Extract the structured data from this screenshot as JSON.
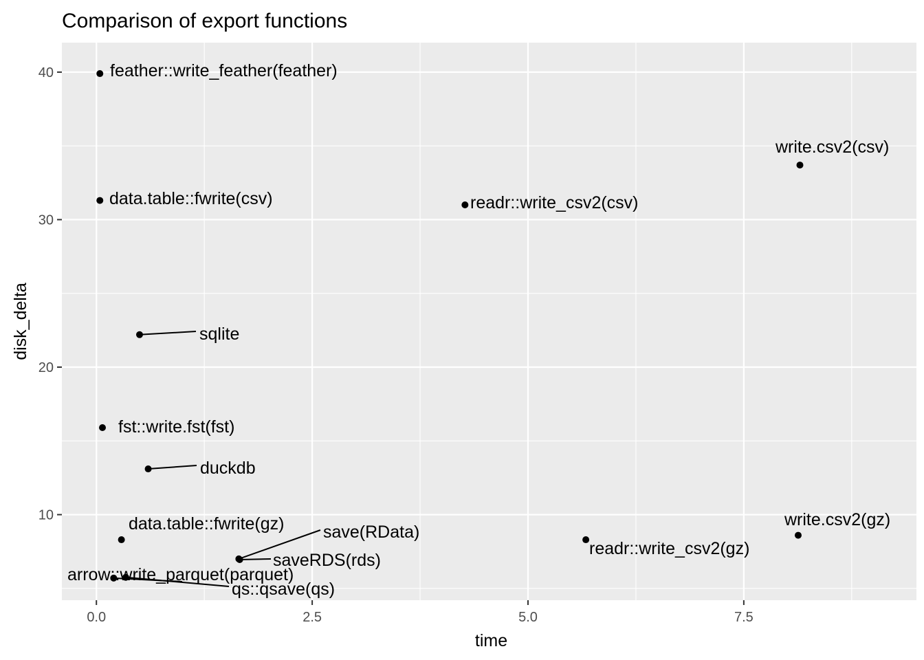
{
  "chart_data": {
    "type": "scatter",
    "title": "Comparison of export functions",
    "xlabel": "time",
    "ylabel": "disk_delta",
    "xlim": [
      -0.4,
      9.5
    ],
    "ylim": [
      4.2,
      42
    ],
    "xticks": [
      0.0,
      2.5,
      5.0,
      7.5
    ],
    "xtick_labels": [
      "0.0",
      "2.5",
      "5.0",
      "7.5"
    ],
    "yticks": [
      10,
      20,
      30,
      40
    ],
    "ytick_labels": [
      "10",
      "20",
      "30",
      "40"
    ],
    "grid": true,
    "points": [
      {
        "label": "feather::write_feather(feather)",
        "x": 0.04,
        "y": 39.9
      },
      {
        "label": "write.csv2(csv)",
        "x": 8.15,
        "y": 33.7
      },
      {
        "label": "data.table::fwrite(csv)",
        "x": 0.04,
        "y": 31.3
      },
      {
        "label": "readr::write_csv2(csv)",
        "x": 4.27,
        "y": 31.0
      },
      {
        "label": "sqlite",
        "x": 0.5,
        "y": 22.2
      },
      {
        "label": "fst::write.fst(fst)",
        "x": 0.07,
        "y": 15.9
      },
      {
        "label": "duckdb",
        "x": 0.6,
        "y": 13.1
      },
      {
        "label": "data.table::fwrite(gz)",
        "x": 0.29,
        "y": 8.3
      },
      {
        "label": "readr::write_csv2(gz)",
        "x": 5.67,
        "y": 8.3
      },
      {
        "label": "write.csv2(gz)",
        "x": 8.13,
        "y": 8.6
      },
      {
        "label": "save(RData)",
        "x": 1.65,
        "y": 7.0
      },
      {
        "label": "saveRDS(rds)",
        "x": 1.66,
        "y": 6.95
      },
      {
        "label": "arrow::write_parquet(parquet)",
        "x": 0.2,
        "y": 5.7
      },
      {
        "label": "qs::qsave(qs)",
        "x": 0.34,
        "y": 5.75
      }
    ]
  }
}
